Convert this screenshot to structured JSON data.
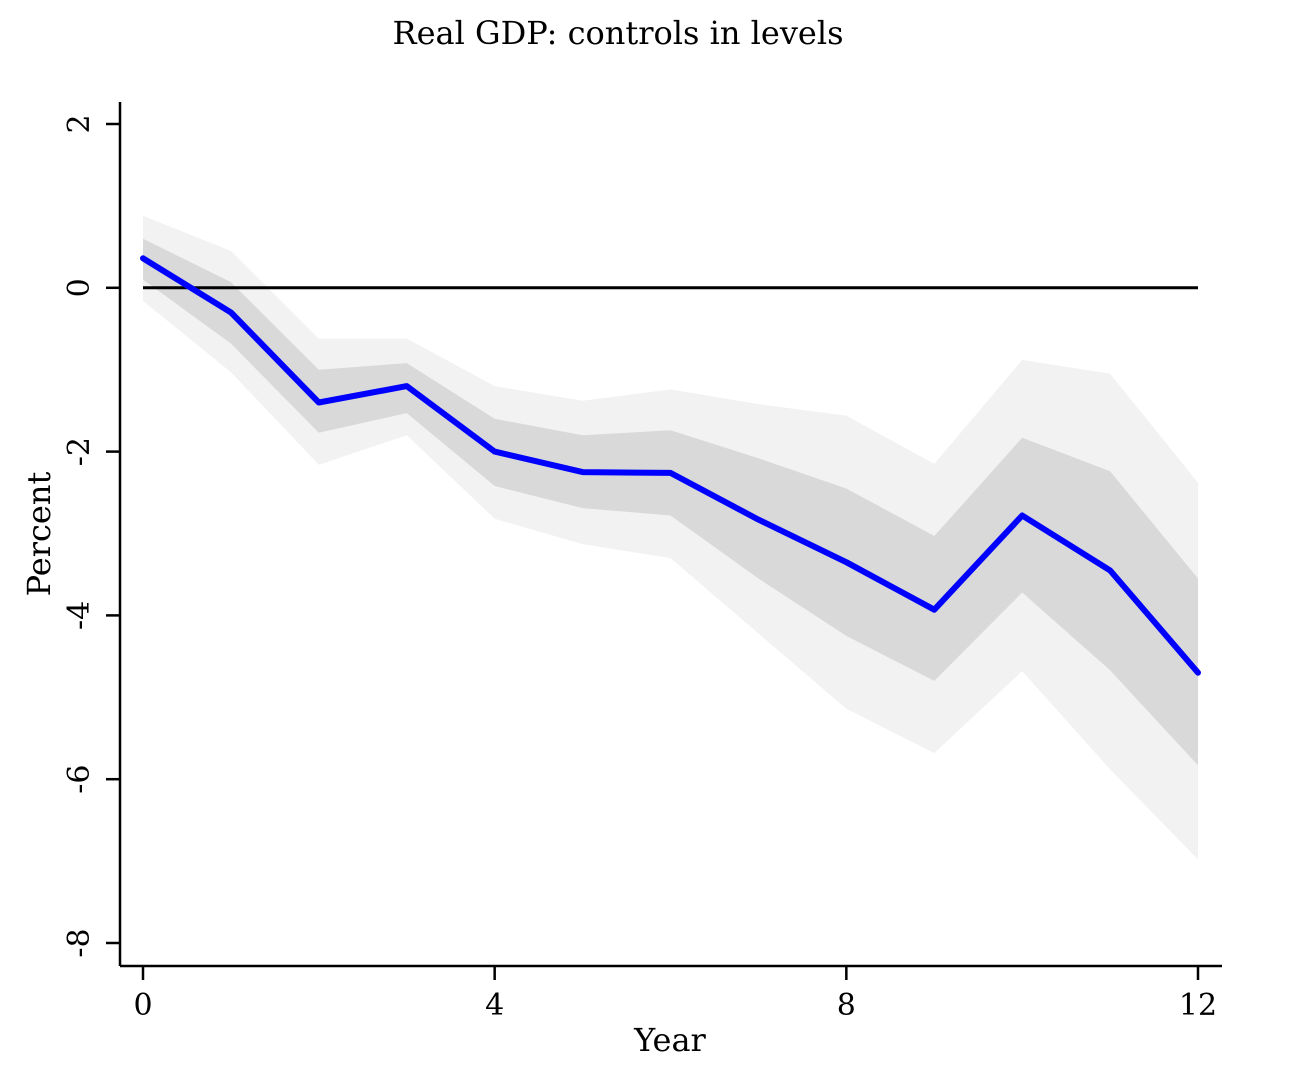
{
  "chart_data": {
    "type": "line",
    "title": "Real GDP: controls in levels",
    "xlabel": "Year",
    "ylabel": "Percent",
    "xlim": [
      0,
      12
    ],
    "ylim": [
      -8,
      2
    ],
    "x_ticks": [
      "0",
      "4",
      "8",
      "12"
    ],
    "y_ticks": [
      "2",
      "0",
      "-2",
      "-4",
      "-6",
      "-8"
    ],
    "x_tick_values": [
      0,
      4,
      8,
      12
    ],
    "y_tick_values": [
      2,
      0,
      -2,
      -4,
      -6,
      -8
    ],
    "zero_line": 0,
    "grid": false,
    "x": [
      0,
      1,
      2,
      3,
      4,
      5,
      6,
      7,
      8,
      9,
      10,
      11,
      12
    ],
    "series": [
      {
        "values": [
          0.36,
          -0.3,
          -1.4,
          -1.2,
          -2.0,
          -2.25,
          -2.26,
          -2.83,
          -3.35,
          -3.93,
          -2.78,
          -3.45,
          -4.7
        ],
        "color": "#0000ff"
      }
    ],
    "bands": [
      {
        "level": "outer",
        "color": "#f2f2f2",
        "upper": [
          0.88,
          0.45,
          -0.62,
          -0.62,
          -1.2,
          -1.38,
          -1.24,
          -1.42,
          -1.56,
          -2.15,
          -0.88,
          -1.05,
          -2.38
        ],
        "lower": [
          -0.16,
          -1.03,
          -2.16,
          -1.8,
          -2.82,
          -3.13,
          -3.3,
          -4.22,
          -5.14,
          -5.68,
          -4.68,
          -5.88,
          -6.98
        ]
      },
      {
        "level": "inner",
        "color": "#d9d9d9",
        "upper": [
          0.6,
          0.07,
          -1.0,
          -0.92,
          -1.6,
          -1.8,
          -1.74,
          -2.08,
          -2.45,
          -3.03,
          -1.83,
          -2.24,
          -3.55
        ],
        "lower": [
          0.1,
          -0.68,
          -1.77,
          -1.53,
          -2.42,
          -2.69,
          -2.78,
          -3.55,
          -4.25,
          -4.8,
          -3.72,
          -4.67,
          -5.83
        ]
      }
    ]
  }
}
